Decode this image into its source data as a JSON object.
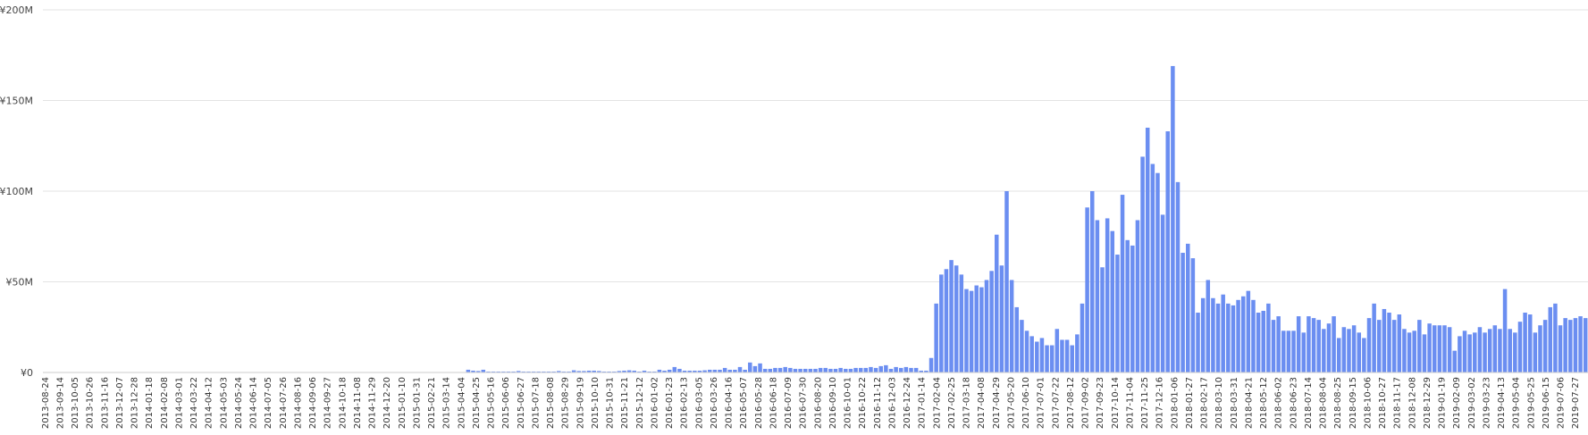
{
  "chart_data": {
    "type": "bar",
    "title": "",
    "xlabel": "",
    "ylabel": "",
    "ylim": [
      0,
      200
    ],
    "y_unit": "million yen",
    "y_ticks": [
      "¥0",
      "¥50M",
      "¥100M",
      "¥150M",
      "¥200M"
    ],
    "x_tick_labels": [
      "2013-08-24",
      "2013-09-14",
      "2013-10-05",
      "2013-10-26",
      "2013-11-16",
      "2013-12-07",
      "2013-12-28",
      "2014-01-18",
      "2014-02-08",
      "2014-03-01",
      "2014-03-22",
      "2014-04-12",
      "2014-05-03",
      "2014-05-24",
      "2014-06-14",
      "2014-07-05",
      "2014-07-26",
      "2014-08-16",
      "2014-09-06",
      "2014-09-27",
      "2014-10-18",
      "2014-11-08",
      "2014-11-29",
      "2014-12-20",
      "2015-01-10",
      "2015-01-31",
      "2015-02-21",
      "2015-03-14",
      "2015-04-04",
      "2015-04-25",
      "2015-05-16",
      "2015-06-06",
      "2015-06-27",
      "2015-07-18",
      "2015-08-08",
      "2015-08-29",
      "2015-09-19",
      "2015-10-10",
      "2015-10-31",
      "2015-11-21",
      "2015-12-12",
      "2016-01-02",
      "2016-01-23",
      "2016-02-13",
      "2016-03-05",
      "2016-03-26",
      "2016-04-16",
      "2016-05-07",
      "2016-05-28",
      "2016-06-18",
      "2016-07-09",
      "2016-07-30",
      "2016-08-20",
      "2016-09-10",
      "2016-10-01",
      "2016-10-22",
      "2016-11-12",
      "2016-12-03",
      "2016-12-24",
      "2017-01-14",
      "2017-02-04",
      "2017-02-25",
      "2017-03-18",
      "2017-04-08",
      "2017-04-29",
      "2017-05-20",
      "2017-06-10",
      "2017-07-01",
      "2017-07-22",
      "2017-08-12",
      "2017-09-02",
      "2017-09-23",
      "2017-10-14",
      "2017-11-04",
      "2017-11-25",
      "2017-12-16",
      "2018-01-06",
      "2018-01-27",
      "2018-02-17",
      "2018-03-10",
      "2018-03-31",
      "2018-04-21",
      "2018-05-12",
      "2018-06-02",
      "2018-06-23",
      "2018-07-14",
      "2018-08-04",
      "2018-08-25",
      "2018-09-15",
      "2018-10-06",
      "2018-10-27",
      "2018-11-17",
      "2018-12-08",
      "2018-12-29",
      "2019-01-19",
      "2019-02-09",
      "2019-03-02",
      "2019-03-23",
      "2019-04-13",
      "2019-05-04",
      "2019-05-25",
      "2019-06-15",
      "2019-07-06",
      "2019-07-27"
    ],
    "series": [
      {
        "color": "#6b8ef1",
        "values": [
          0,
          0,
          0,
          0,
          0,
          0,
          0,
          0,
          0,
          0,
          0,
          0,
          0,
          0,
          0,
          0,
          0,
          0,
          0,
          0,
          0,
          0,
          0,
          0,
          0,
          0,
          0,
          0,
          0,
          0,
          0,
          0,
          0,
          0,
          0,
          0,
          0,
          0,
          0,
          0,
          0,
          0,
          0,
          0,
          0,
          0,
          0,
          0,
          0,
          0,
          0,
          0,
          0,
          0,
          0,
          0,
          0,
          0,
          0,
          0,
          0,
          0,
          0,
          0,
          0,
          0,
          0,
          0,
          0,
          0,
          0,
          0,
          0,
          0,
          0,
          0,
          0,
          0,
          0,
          0,
          0,
          0,
          0,
          0,
          1.5,
          1,
          0.8,
          1.5,
          0.5,
          0.5,
          0.5,
          0.5,
          0.5,
          0.5,
          0.8,
          0.5,
          0.5,
          0.5,
          0.5,
          0.5,
          0.5,
          0.5,
          0.8,
          0.5,
          0.5,
          1.2,
          0.8,
          0.8,
          1,
          1,
          0.8,
          0.5,
          0.5,
          0.5,
          0.8,
          1,
          1.2,
          1,
          0.5,
          1,
          0.5,
          0.5,
          1.5,
          1,
          1.5,
          3,
          2,
          1,
          1,
          1,
          1,
          1.2,
          1.5,
          1.5,
          1.5,
          2.5,
          1.5,
          1.5,
          3,
          1.5,
          5.5,
          3.5,
          5,
          2,
          2,
          2.5,
          2.5,
          3,
          2.5,
          2,
          2,
          2,
          2,
          2,
          2.5,
          2.5,
          2,
          2,
          2.5,
          2,
          2,
          2.5,
          2.5,
          2.5,
          3,
          2.5,
          3.5,
          4,
          2,
          3,
          2.5,
          3,
          2.5,
          2.5,
          1,
          1,
          8,
          38,
          54,
          57,
          62,
          59,
          54,
          46,
          45,
          48,
          47,
          51,
          56,
          76,
          59,
          100,
          51,
          36,
          29,
          23,
          20,
          17,
          19,
          15,
          15,
          24,
          18,
          18,
          15,
          21,
          38,
          91,
          100,
          84,
          58,
          85,
          78,
          65,
          98,
          73,
          70,
          84,
          119,
          135,
          115,
          110,
          87,
          133,
          169,
          105,
          66,
          71,
          63,
          33,
          41,
          51,
          41,
          38,
          43,
          38,
          37,
          40,
          42,
          45,
          40,
          33,
          34,
          38,
          29,
          31,
          23,
          23,
          23,
          31,
          22,
          31,
          30,
          29,
          24,
          27,
          31,
          19,
          25,
          24,
          26,
          22,
          19,
          30,
          38,
          29,
          35,
          33,
          29,
          32,
          24,
          22,
          23,
          29,
          21,
          27,
          26,
          26,
          26,
          25,
          12,
          20,
          23,
          21,
          22,
          25,
          22,
          24,
          26,
          24,
          46,
          24,
          22,
          28,
          33,
          32,
          22,
          26,
          29,
          36,
          38,
          26,
          30,
          29,
          30,
          31,
          30
        ]
      }
    ]
  }
}
